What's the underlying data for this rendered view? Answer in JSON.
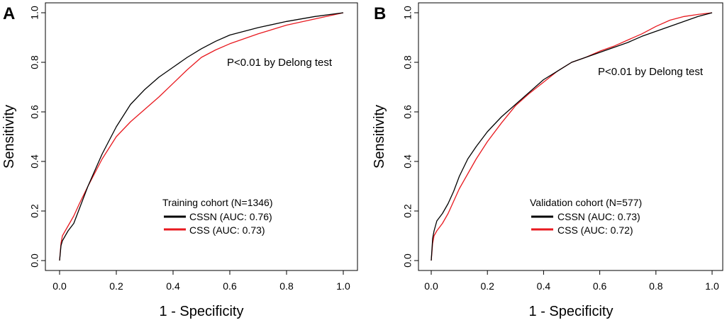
{
  "chart_data": [
    {
      "type": "line",
      "panel": "A",
      "xlabel": "1 - Specificity",
      "ylabel": "Sensitivity",
      "xlim": [
        0,
        1
      ],
      "ylim": [
        0,
        1
      ],
      "xticks": [
        "0.0",
        "0.2",
        "0.4",
        "0.6",
        "0.8",
        "1.0"
      ],
      "yticks": [
        "0.0",
        "0.2",
        "0.4",
        "0.6",
        "0.8",
        "1.0"
      ],
      "annotation": "P<0.01 by Delong test",
      "legend_title": "Training cohort (N=1346)",
      "series": [
        {
          "name": "CSSN",
          "label": "CSSN  (AUC: 0.76)",
          "color": "#000000",
          "x": [
            0,
            0.005,
            0.01,
            0.02,
            0.03,
            0.05,
            0.07,
            0.1,
            0.15,
            0.2,
            0.25,
            0.3,
            0.35,
            0.4,
            0.45,
            0.5,
            0.55,
            0.6,
            0.65,
            0.7,
            0.8,
            0.9,
            1.0
          ],
          "y": [
            0,
            0.06,
            0.08,
            0.1,
            0.12,
            0.15,
            0.21,
            0.3,
            0.43,
            0.54,
            0.63,
            0.69,
            0.74,
            0.78,
            0.82,
            0.855,
            0.885,
            0.91,
            0.925,
            0.94,
            0.965,
            0.985,
            1.0
          ]
        },
        {
          "name": "CSS",
          "label": "CSS  (AUC: 0.73)",
          "color": "#e8191f",
          "x": [
            0,
            0.005,
            0.01,
            0.02,
            0.03,
            0.05,
            0.07,
            0.1,
            0.15,
            0.2,
            0.25,
            0.3,
            0.35,
            0.4,
            0.45,
            0.5,
            0.55,
            0.6,
            0.65,
            0.7,
            0.8,
            0.9,
            1.0
          ],
          "y": [
            0,
            0.07,
            0.1,
            0.12,
            0.14,
            0.18,
            0.23,
            0.3,
            0.41,
            0.5,
            0.56,
            0.61,
            0.66,
            0.715,
            0.77,
            0.82,
            0.85,
            0.875,
            0.895,
            0.915,
            0.95,
            0.975,
            1.0
          ]
        }
      ]
    },
    {
      "type": "line",
      "panel": "B",
      "xlabel": "1 - Specificity",
      "ylabel": "Sensitivity",
      "xlim": [
        0,
        1
      ],
      "ylim": [
        0,
        1
      ],
      "xticks": [
        "0.0",
        "0.2",
        "0.4",
        "0.6",
        "0.8",
        "1.0"
      ],
      "yticks": [
        "0.0",
        "0.2",
        "0.4",
        "0.6",
        "0.8",
        "1.0"
      ],
      "annotation": "P<0.01 by Delong test",
      "legend_title": "Validation cohort (N=577)",
      "series": [
        {
          "name": "CSSN",
          "label": "CSSN  (AUC: 0.73)",
          "color": "#000000",
          "x": [
            0,
            0.005,
            0.01,
            0.02,
            0.04,
            0.06,
            0.08,
            0.1,
            0.13,
            0.16,
            0.2,
            0.25,
            0.3,
            0.35,
            0.4,
            0.45,
            0.5,
            0.55,
            0.6,
            0.65,
            0.7,
            0.75,
            0.8,
            0.85,
            0.9,
            0.95,
            1.0
          ],
          "y": [
            0,
            0.09,
            0.12,
            0.16,
            0.19,
            0.23,
            0.28,
            0.34,
            0.41,
            0.46,
            0.52,
            0.58,
            0.63,
            0.68,
            0.73,
            0.765,
            0.8,
            0.82,
            0.84,
            0.86,
            0.88,
            0.905,
            0.925,
            0.945,
            0.965,
            0.985,
            1.0
          ]
        },
        {
          "name": "CSS",
          "label": "CSS  (AUC: 0.72)",
          "color": "#e8191f",
          "x": [
            0,
            0.005,
            0.01,
            0.02,
            0.04,
            0.06,
            0.08,
            0.1,
            0.13,
            0.16,
            0.2,
            0.25,
            0.3,
            0.35,
            0.4,
            0.45,
            0.5,
            0.55,
            0.6,
            0.65,
            0.7,
            0.75,
            0.8,
            0.85,
            0.9,
            0.95,
            1.0
          ],
          "y": [
            0,
            0.07,
            0.1,
            0.12,
            0.15,
            0.19,
            0.24,
            0.29,
            0.35,
            0.41,
            0.48,
            0.555,
            0.625,
            0.675,
            0.72,
            0.765,
            0.8,
            0.82,
            0.845,
            0.865,
            0.89,
            0.915,
            0.945,
            0.97,
            0.985,
            0.993,
            1.0
          ]
        }
      ]
    }
  ]
}
